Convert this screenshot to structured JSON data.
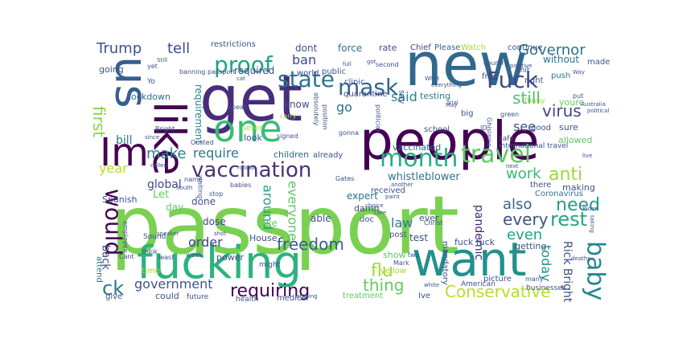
{
  "words": [
    {
      "text": "passport",
      "color": "#7ad151"
    },
    {
      "text": "get",
      "color": "#472d7b"
    },
    {
      "text": "people",
      "color": "#440154"
    },
    {
      "text": "new",
      "color": "#31688e"
    },
    {
      "text": "want",
      "color": "#21918c"
    },
    {
      "text": "fucking",
      "color": "#2db27d"
    },
    {
      "text": "us",
      "color": "#355f8d"
    },
    {
      "text": "like",
      "color": "#440154"
    },
    {
      "text": "one",
      "color": "#3bbc75"
    },
    {
      "text": "Im",
      "color": "#440154"
    },
    {
      "text": "vaccination",
      "color": "#46327e"
    },
    {
      "text": "month",
      "color": "#28ae80"
    },
    {
      "text": "travel",
      "color": "#5ec962"
    },
    {
      "text": "proof",
      "color": "#20a386"
    },
    {
      "text": "state",
      "color": "#2c728e"
    },
    {
      "text": "mask",
      "color": "#31688e"
    },
    {
      "text": "Fuck",
      "color": "#3e4989"
    },
    {
      "text": "would",
      "color": "#440154"
    },
    {
      "text": "baby",
      "color": "#25858e"
    },
    {
      "text": "requiring",
      "color": "#440154"
    },
    {
      "text": "Conservative",
      "color": "#b5de2b"
    },
    {
      "text": "government",
      "color": "#38588c"
    },
    {
      "text": "ck",
      "color": "#2a788e"
    },
    {
      "text": "flu",
      "color": "#a0da39"
    },
    {
      "text": "thing",
      "color": "#65cb5e"
    },
    {
      "text": "rest",
      "color": "#21a685"
    },
    {
      "text": "need",
      "color": "#1fa088"
    },
    {
      "text": "every",
      "color": "#3b528b"
    },
    {
      "text": "freedom",
      "color": "#355f8d"
    },
    {
      "text": "anti",
      "color": "#9bd93c"
    },
    {
      "text": "virus",
      "color": "#414487"
    },
    {
      "text": "work",
      "color": "#37b878"
    },
    {
      "text": "Governor",
      "color": "#2d708e"
    },
    {
      "text": "Trump",
      "color": "#3b528b"
    },
    {
      "text": "tell",
      "color": "#3e4989"
    },
    {
      "text": "ban",
      "color": "#3e4989"
    },
    {
      "text": "said",
      "color": "#26828e"
    },
    {
      "text": "still",
      "color": "#4ac16d"
    },
    {
      "text": "make",
      "color": "#26828e"
    },
    {
      "text": "require",
      "color": "#2a788e"
    },
    {
      "text": "first",
      "color": "#86d549"
    },
    {
      "text": "year",
      "color": "#b5de2b"
    },
    {
      "text": "go",
      "color": "#2c728e"
    },
    {
      "text": "see",
      "color": "#3b528b"
    },
    {
      "text": "also",
      "color": "#31688e"
    },
    {
      "text": "even",
      "color": "#20a386"
    },
    {
      "text": "law",
      "color": "#2a788e"
    },
    {
      "text": "pandemic",
      "color": "#482878"
    },
    {
      "text": "everyone",
      "color": "#5ec962"
    },
    {
      "text": "around",
      "color": "#20a386"
    },
    {
      "text": "order",
      "color": "#414487"
    },
    {
      "text": "today",
      "color": "#21918c"
    },
    {
      "text": "Rick Bright",
      "color": "#3b528b"
    },
    {
      "text": "required",
      "color": "#3e4989"
    },
    {
      "text": "dont",
      "color": "#3b528b"
    },
    {
      "text": "force",
      "color": "#2c728e"
    },
    {
      "text": "rate",
      "color": "#414487"
    },
    {
      "text": "Chief",
      "color": "#414487"
    },
    {
      "text": "Please",
      "color": "#31688e"
    },
    {
      "text": "Watch",
      "color": "#a0da39"
    },
    {
      "text": "continue",
      "color": "#3b528b"
    },
    {
      "text": "without",
      "color": "#2c728e"
    },
    {
      "text": "made",
      "color": "#3b528b"
    },
    {
      "text": "restrictions",
      "color": "#3b528b"
    },
    {
      "text": "going",
      "color": "#3b528b"
    },
    {
      "text": "lockdown",
      "color": "#31688e"
    },
    {
      "text": "bill",
      "color": "#2a788e"
    },
    {
      "text": "global",
      "color": "#3e4989"
    },
    {
      "text": "Spanish",
      "color": "#3b528b"
    },
    {
      "text": "Let",
      "color": "#65cb5e"
    },
    {
      "text": "requirement",
      "color": "#25858e"
    },
    {
      "text": "know",
      "color": "#3e4989"
    },
    {
      "text": "world",
      "color": "#414487"
    },
    {
      "text": "public",
      "color": "#3b528b"
    },
    {
      "text": "clinic",
      "color": "#3b528b"
    },
    {
      "text": "quarantine",
      "color": "#414487"
    },
    {
      "text": "testing",
      "color": "#2a788e"
    },
    {
      "text": "free",
      "color": "#3b528b"
    },
    {
      "text": "right",
      "color": "#3e4989"
    },
    {
      "text": "youre",
      "color": "#65cb5e"
    },
    {
      "text": "push",
      "color": "#2c728e"
    },
    {
      "text": "good",
      "color": "#3b528b"
    },
    {
      "text": "sure",
      "color": "#3b528b"
    },
    {
      "text": "allowed",
      "color": "#5ec962"
    },
    {
      "text": "school",
      "color": "#3b528b"
    },
    {
      "text": "big",
      "color": "#3b528b"
    },
    {
      "text": "international travel",
      "color": "#3b528b"
    },
    {
      "text": "look",
      "color": "#3b528b"
    },
    {
      "text": "children",
      "color": "#31688e"
    },
    {
      "text": "already",
      "color": "#3b528b"
    },
    {
      "text": "vaccinated",
      "color": "#31688e"
    },
    {
      "text": "whistleblower",
      "color": "#2c728e"
    },
    {
      "text": "received",
      "color": "#3b528b"
    },
    {
      "text": "expert",
      "color": "#2c728e"
    },
    {
      "text": "damn",
      "color": "#3e4989"
    },
    {
      "text": "doc",
      "color": "#3b528b"
    },
    {
      "text": "ever",
      "color": "#3b528b"
    },
    {
      "text": "mandatory",
      "color": "#3b528b"
    },
    {
      "text": "Coronavirus",
      "color": "#2c728e"
    },
    {
      "text": "making",
      "color": "#3b528b"
    },
    {
      "text": "there",
      "color": "#3b528b"
    },
    {
      "text": "getting",
      "color": "#3b528b"
    },
    {
      "text": "back",
      "color": "#3e4989"
    },
    {
      "text": "attend",
      "color": "#2c728e"
    },
    {
      "text": "day",
      "color": "#5ec962"
    },
    {
      "text": "done",
      "color": "#3b528b"
    },
    {
      "text": "dose",
      "color": "#414487"
    },
    {
      "text": "take",
      "color": "#65cb5e"
    },
    {
      "text": "able",
      "color": "#3b528b"
    },
    {
      "text": "House",
      "color": "#3b528b"
    },
    {
      "text": "post",
      "color": "#3b528b"
    },
    {
      "text": "test",
      "color": "#3b528b"
    },
    {
      "text": "fuck fuck",
      "color": "#3b528b"
    },
    {
      "text": "show",
      "color": "#5ec962"
    },
    {
      "text": "yellow",
      "color": "#a0da39"
    },
    {
      "text": "picture",
      "color": "#3b528b"
    },
    {
      "text": "Ive",
      "color": "#3b528b"
    },
    {
      "text": "treatment",
      "color": "#5ec962"
    },
    {
      "text": "medical",
      "color": "#3b528b"
    },
    {
      "text": "health",
      "color": "#3b528b"
    },
    {
      "text": "future",
      "color": "#3b528b"
    },
    {
      "text": "could",
      "color": "#3b528b"
    },
    {
      "text": "give",
      "color": "#3b528b"
    },
    {
      "text": "power",
      "color": "#3b528b"
    },
    {
      "text": "might",
      "color": "#3b528b"
    },
    {
      "text": "time",
      "color": "#a0da39"
    },
    {
      "text": "American",
      "color": "#3b528b"
    },
    {
      "text": "businesses",
      "color": "#3b528b"
    },
    {
      "text": "many",
      "color": "#3b528b"
    },
    {
      "text": "say",
      "color": "#3b528b"
    },
    {
      "text": "gonna",
      "color": "#3b528b"
    },
    {
      "text": "Yo",
      "color": "#3b528b"
    },
    {
      "text": "yet",
      "color": "#3b528b"
    },
    {
      "text": "Ousted",
      "color": "#3b528b"
    },
    {
      "text": "never",
      "color": "#a0da39"
    },
    {
      "text": "name",
      "color": "#3b528b"
    },
    {
      "text": "speak",
      "color": "#3b528b"
    },
    {
      "text": "carry",
      "color": "#a0da39"
    },
    {
      "text": "signed",
      "color": "#3b528b"
    },
    {
      "text": "safe",
      "color": "#3b528b"
    },
    {
      "text": "shit",
      "color": "#3b528b"
    },
    {
      "text": "funny",
      "color": "#a0da39"
    },
    {
      "text": "Christ",
      "color": "#3b528b"
    },
    {
      "text": "two",
      "color": "#3b528b"
    },
    {
      "text": "Mark",
      "color": "#3b528b"
    },
    {
      "text": "stop",
      "color": "#3b528b"
    },
    {
      "text": "babies",
      "color": "#3b528b"
    },
    {
      "text": "waiting",
      "color": "#3b528b"
    },
    {
      "text": "employee",
      "color": "#3b528b"
    },
    {
      "text": "Sound",
      "color": "#3b528b"
    },
    {
      "text": "think",
      "color": "#3b528b"
    },
    {
      "text": "week",
      "color": "#3b528b"
    },
    {
      "text": "Cant",
      "color": "#3b528b"
    },
    {
      "text": "least",
      "color": "#3b528b"
    },
    {
      "text": "called",
      "color": "#3b528b"
    },
    {
      "text": "rollout",
      "color": "#3b528b"
    },
    {
      "text": "Gates",
      "color": "#3b528b"
    },
    {
      "text": "another",
      "color": "#3b528b"
    },
    {
      "text": "choice",
      "color": "#3b528b"
    },
    {
      "text": "care",
      "color": "#3b528b"
    },
    {
      "text": "deaths",
      "color": "#3b528b"
    },
    {
      "text": "Biden",
      "color": "#3b528b"
    },
    {
      "text": "political",
      "color": "#3b528b"
    },
    {
      "text": "politician",
      "color": "#3b528b"
    },
    {
      "text": "second",
      "color": "#3b528b"
    },
    {
      "text": "green",
      "color": "#3b528b"
    },
    {
      "text": "trial",
      "color": "#3b528b"
    },
    {
      "text": "Australia",
      "color": "#3b528b"
    },
    {
      "text": "Ghislaine",
      "color": "#3b528b"
    },
    {
      "text": "country",
      "color": "#3b528b"
    },
    {
      "text": "What",
      "color": "#3b528b"
    },
    {
      "text": "everything",
      "color": "#3b528b"
    },
    {
      "text": "live",
      "color": "#3b528b"
    },
    {
      "text": "next",
      "color": "#3b528b"
    },
    {
      "text": "full",
      "color": "#3b528b"
    },
    {
      "text": "positive",
      "color": "#3b528b"
    },
    {
      "text": "since",
      "color": "#3b528b"
    },
    {
      "text": "Bright",
      "color": "#3b528b"
    },
    {
      "text": "May",
      "color": "#3b528b"
    },
    {
      "text": "ID",
      "color": "#3b528b"
    },
    {
      "text": "put",
      "color": "#3b528b"
    },
    {
      "text": "South",
      "color": "#3b528b"
    },
    {
      "text": "speaker",
      "color": "#3b528b"
    },
    {
      "text": "shot",
      "color": "#3b528b"
    },
    {
      "text": "nothing",
      "color": "#3b528b"
    },
    {
      "text": "white",
      "color": "#3b528b"
    },
    {
      "text": "banning passport",
      "color": "#3b528b"
    },
    {
      "text": "absolutely",
      "color": "#3b528b"
    },
    {
      "text": "position",
      "color": "#3b528b"
    },
    {
      "text": "got",
      "color": "#3b528b"
    },
    {
      "text": "paint",
      "color": "#3b528b"
    },
    {
      "text": "Way",
      "color": "#3b528b"
    },
    {
      "text": "taking",
      "color": "#3b528b"
    },
    {
      "text": "cat",
      "color": "#3b528b"
    },
    {
      "text": "Still",
      "color": "#3b528b"
    }
  ]
}
